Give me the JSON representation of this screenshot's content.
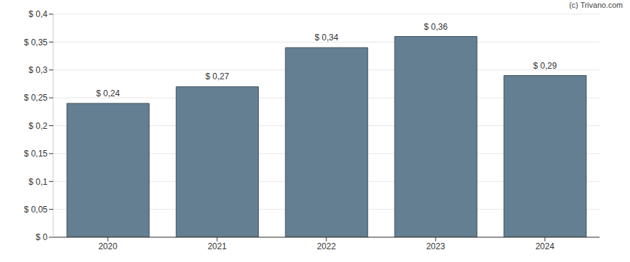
{
  "chart_data": {
    "type": "bar",
    "annotation": "(c) Trivano.com",
    "categories": [
      "2020",
      "2021",
      "2022",
      "2023",
      "2024"
    ],
    "values": [
      0.24,
      0.27,
      0.34,
      0.36,
      0.29
    ],
    "value_labels": [
      "$ 0,24",
      "$ 0,27",
      "$ 0,34",
      "$ 0,36",
      "$ 0,29"
    ],
    "data_labels": true,
    "color": "#647f92",
    "ylim": [
      0,
      0.4
    ],
    "yticks": [
      {
        "value": 0,
        "label": "$ 0"
      },
      {
        "value": 0.05,
        "label": "$ 0,05"
      },
      {
        "value": 0.1,
        "label": "$ 0,1"
      },
      {
        "value": 0.15,
        "label": "$ 0,15"
      },
      {
        "value": 0.2,
        "label": "$ 0,2"
      },
      {
        "value": 0.25,
        "label": "$ 0,25"
      },
      {
        "value": 0.3,
        "label": "$ 0,3"
      },
      {
        "value": 0.35,
        "label": "$ 0,35"
      },
      {
        "value": 0.4,
        "label": "$ 0,4"
      }
    ],
    "grid": true
  }
}
